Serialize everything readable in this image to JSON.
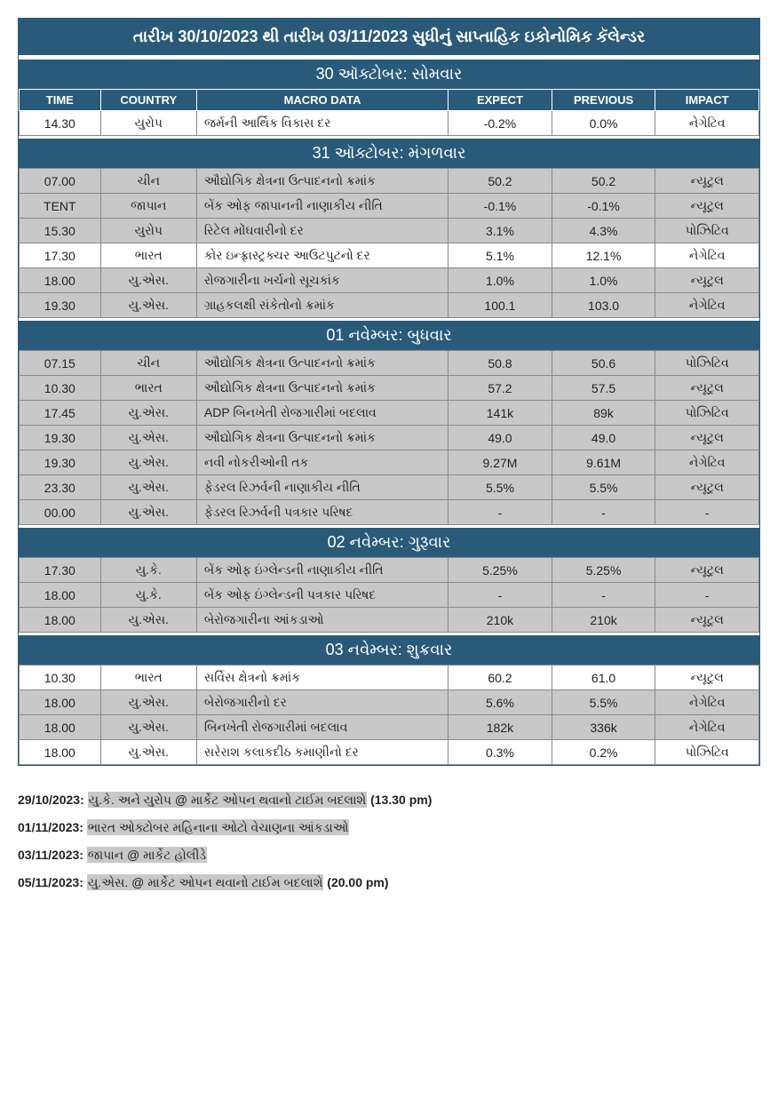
{
  "title": "તારીખ 30/10/2023 થી તારીખ 03/11/2023 સુધીનું સાપ્તાહિક ઇકોનોમિક કૅલેન્ડર",
  "columns": {
    "time": "TIME",
    "country": "COUNTRY",
    "macro": "MACRO DATA",
    "expect": "EXPECT",
    "previous": "PREVIOUS",
    "impact": "IMPACT"
  },
  "days": [
    {
      "header": "30 ઑક્ટોબર: સોમવાર",
      "showColumnHeader": true,
      "rows": [
        {
          "shaded": false,
          "time": "14.30",
          "country": "યુરોપ",
          "macro": "જર્મની આર્થિક વિકાસ દર",
          "expect": "-0.2%",
          "previous": "0.0%",
          "impact": "નેગેટિવ"
        }
      ]
    },
    {
      "header": "31 ઑક્ટોબર: મંગળવાર",
      "showColumnHeader": false,
      "rows": [
        {
          "shaded": true,
          "time": "07.00",
          "country": "ચીન",
          "macro": "ઔદ્યોગિક ક્ષેત્રના ઉત્પાદનનો ક્રમાંક",
          "expect": "50.2",
          "previous": "50.2",
          "impact": "ન્યૂટ્રલ"
        },
        {
          "shaded": true,
          "time": "TENT",
          "country": "જાપાન",
          "macro": "બેંક ઓફ જાપાનની નાણાકીય નીતિ",
          "expect": "-0.1%",
          "previous": "-0.1%",
          "impact": "ન્યૂટ્રલ"
        },
        {
          "shaded": true,
          "time": "15.30",
          "country": "યુરોપ",
          "macro": "રિટેલ મોંઘવારીનો દર",
          "expect": "3.1%",
          "previous": "4.3%",
          "impact": "પોઝિટિવ"
        },
        {
          "shaded": false,
          "time": "17.30",
          "country": "ભારત",
          "macro": "કોર ઇન્ફ્રાસ્ટ્રક્ચર આઉટપુટનો દર",
          "expect": "5.1%",
          "previous": "12.1%",
          "impact": "નેગેટિવ"
        },
        {
          "shaded": true,
          "time": "18.00",
          "country": "યુ.એસ.",
          "macro": "રોજગારીના ખર્ચનો સૂચકાંક",
          "expect": "1.0%",
          "previous": "1.0%",
          "impact": "ન્યૂટ્રલ"
        },
        {
          "shaded": true,
          "time": "19.30",
          "country": "યુ.એસ.",
          "macro": "ગ્રાહકલક્ષી સંકેતોનો ક્રમાંક",
          "expect": "100.1",
          "previous": "103.0",
          "impact": "નેગેટિવ"
        }
      ]
    },
    {
      "header": "01 નવેમ્બર: બુધવાર",
      "showColumnHeader": false,
      "rows": [
        {
          "shaded": true,
          "time": "07.15",
          "country": "ચીન",
          "macro": "ઔદ્યોગિક ક્ષેત્રના ઉત્પાદનનો ક્રમાંક",
          "expect": "50.8",
          "previous": "50.6",
          "impact": "પોઝિટિવ"
        },
        {
          "shaded": true,
          "time": "10.30",
          "country": "ભારત",
          "macro": "ઔદ્યોગિક ક્ષેત્રના ઉત્પાદનનો ક્રમાંક",
          "expect": "57.2",
          "previous": "57.5",
          "impact": "ન્યૂટ્રલ"
        },
        {
          "shaded": true,
          "time": "17.45",
          "country": "યુ.એસ.",
          "macro": "ADP બિનખેતી રોજગારીમાં બદલાવ",
          "expect": "141k",
          "previous": "89k",
          "impact": "પોઝિટિવ"
        },
        {
          "shaded": true,
          "time": "19.30",
          "country": "યુ.એસ.",
          "macro": "ઔદ્યોગિક ક્ષેત્રના ઉત્પાદનનો ક્રમાંક",
          "expect": "49.0",
          "previous": "49.0",
          "impact": "ન્યૂટ્રલ"
        },
        {
          "shaded": true,
          "time": "19.30",
          "country": "યુ.એસ.",
          "macro": "નવી નોકરીઓની તક",
          "expect": "9.27M",
          "previous": "9.61M",
          "impact": "નેગેટિવ"
        },
        {
          "shaded": true,
          "time": "23.30",
          "country": "યુ.એસ.",
          "macro": "ફેડરલ રિઝર્વની નાણાકીય નીતિ",
          "expect": "5.5%",
          "previous": "5.5%",
          "impact": "ન્યૂટ્રલ"
        },
        {
          "shaded": true,
          "time": "00.00",
          "country": "યુ.એસ.",
          "macro": "ફેડરલ રિઝર્વની પત્રકાર પરિષદ",
          "expect": "-",
          "previous": "-",
          "impact": "-"
        }
      ]
    },
    {
      "header": "02 નવેમ્બર: ગુરૂવાર",
      "showColumnHeader": false,
      "rows": [
        {
          "shaded": true,
          "time": "17.30",
          "country": "યુ.કે.",
          "macro": "બેંક ઓફ ઇંગ્લેન્ડની નાણાકીય નીતિ",
          "expect": "5.25%",
          "previous": "5.25%",
          "impact": "ન્યૂટ્રલ"
        },
        {
          "shaded": true,
          "time": "18.00",
          "country": "યુ.કે.",
          "macro": "બેંક ઓફ ઇંગ્લેન્ડની પત્રકાર પરિષદ",
          "expect": "-",
          "previous": "-",
          "impact": "-"
        },
        {
          "shaded": true,
          "time": "18.00",
          "country": "યુ.એસ.",
          "macro": "બેરોજગારીના આંકડાઓ",
          "expect": "210k",
          "previous": "210k",
          "impact": "ન્યૂટ્રલ"
        }
      ]
    },
    {
      "header": "03 નવેમ્બર: શુક્રવાર",
      "showColumnHeader": false,
      "rows": [
        {
          "shaded": false,
          "time": "10.30",
          "country": "ભારત",
          "macro": "સર્વિસ ક્ષેત્રનો ક્રમાંક",
          "expect": "60.2",
          "previous": "61.0",
          "impact": "ન્યૂટ્રલ"
        },
        {
          "shaded": true,
          "time": "18.00",
          "country": "યુ.એસ.",
          "macro": "બેરોજગારીનો દર",
          "expect": "5.6%",
          "previous": "5.5%",
          "impact": "નેગેટિવ"
        },
        {
          "shaded": true,
          "time": "18.00",
          "country": "યુ.એસ.",
          "macro": "બિનખેતી રોજગારીમાં બદલાવ",
          "expect": "182k",
          "previous": "336k",
          "impact": "નેગેટિવ"
        },
        {
          "shaded": false,
          "time": "18.00",
          "country": "યુ.એસ.",
          "macro": "સરેરાશ કલાકદીઠ કમાણીનો દર",
          "expect": "0.3%",
          "previous": "0.2%",
          "impact": "પોઝિટિવ"
        }
      ]
    }
  ],
  "notes": [
    {
      "date": "29/10/2023",
      "text": "યુ.કે. અને યુરોપ @ માર્કેટ ઓપન થવાનો ટાઈમ બદલાશે",
      "tail": "(13.30 pm)"
    },
    {
      "date": "01/11/2023",
      "text": "ભારત ઓક્ટોબર મહિનાના ઓટો વેચાણના આંકડાઓ",
      "tail": ""
    },
    {
      "date": "03/11/2023",
      "text": "જાપાન @ માર્કેટ હોલીડે",
      "tail": ""
    },
    {
      "date": "05/11/2023",
      "text": "યુ.એસ. @ માર્કેટ ઓપન થવાનો ટાઈમ બદલાશે",
      "tail": "(20.00 pm)"
    }
  ]
}
